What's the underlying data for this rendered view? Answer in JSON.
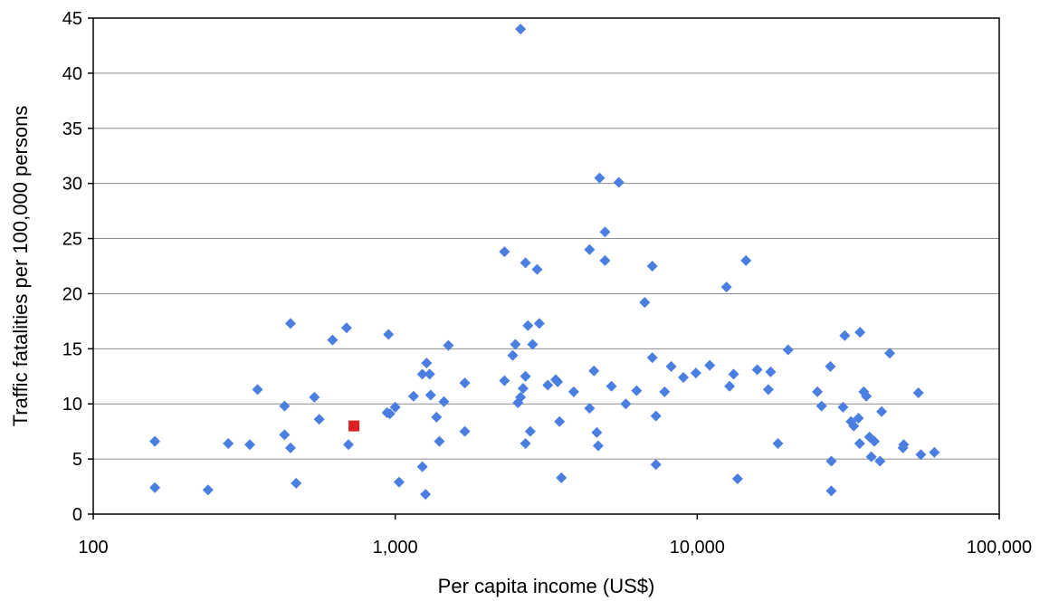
{
  "chart_data": {
    "type": "scatter",
    "xlabel": "Per capita income (US$)",
    "ylabel": "Traffic fatalities per 100,000 persons",
    "x_scale": "log",
    "xlim": [
      100,
      100000
    ],
    "ylim": [
      0,
      45
    ],
    "x_ticks": [
      {
        "value": 100,
        "label": "100"
      },
      {
        "value": 1000,
        "label": "1,000"
      },
      {
        "value": 10000,
        "label": "10,000"
      },
      {
        "value": 100000,
        "label": "100,000"
      }
    ],
    "y_ticks": [
      {
        "value": 0,
        "label": "0"
      },
      {
        "value": 5,
        "label": "5"
      },
      {
        "value": 10,
        "label": "10"
      },
      {
        "value": 15,
        "label": "15"
      },
      {
        "value": 20,
        "label": "20"
      },
      {
        "value": 25,
        "label": "25"
      },
      {
        "value": 30,
        "label": "30"
      },
      {
        "value": 35,
        "label": "35"
      },
      {
        "value": 40,
        "label": "40"
      },
      {
        "value": 45,
        "label": "45"
      }
    ],
    "grid": "horizontal",
    "legend": "none",
    "series": [
      {
        "marker": "diamond",
        "color": "#4a7ee0",
        "points": [
          [
            160,
            6.6
          ],
          [
            160,
            2.4
          ],
          [
            240,
            2.2
          ],
          [
            280,
            6.4
          ],
          [
            330,
            6.3
          ],
          [
            350,
            11.3
          ],
          [
            430,
            9.8
          ],
          [
            430,
            7.2
          ],
          [
            450,
            17.3
          ],
          [
            450,
            6.0
          ],
          [
            470,
            2.8
          ],
          [
            540,
            10.6
          ],
          [
            560,
            8.6
          ],
          [
            620,
            15.8
          ],
          [
            690,
            16.9
          ],
          [
            700,
            6.3
          ],
          [
            940,
            9.2
          ],
          [
            950,
            16.3
          ],
          [
            960,
            9.1
          ],
          [
            1000,
            9.7
          ],
          [
            1030,
            2.9
          ],
          [
            1150,
            10.7
          ],
          [
            1230,
            12.7
          ],
          [
            1230,
            4.3
          ],
          [
            1260,
            1.8
          ],
          [
            1270,
            13.7
          ],
          [
            1300,
            12.7
          ],
          [
            1310,
            10.8
          ],
          [
            1370,
            8.8
          ],
          [
            1400,
            6.6
          ],
          [
            1450,
            10.2
          ],
          [
            1500,
            15.3
          ],
          [
            1700,
            11.9
          ],
          [
            1700,
            7.5
          ],
          [
            2300,
            23.8
          ],
          [
            2300,
            12.1
          ],
          [
            2450,
            14.4
          ],
          [
            2500,
            15.4
          ],
          [
            2550,
            10.1
          ],
          [
            2600,
            44.0
          ],
          [
            2600,
            10.6
          ],
          [
            2650,
            11.4
          ],
          [
            2700,
            6.4
          ],
          [
            2700,
            12.5
          ],
          [
            2700,
            22.8
          ],
          [
            2750,
            17.1
          ],
          [
            2800,
            7.5
          ],
          [
            2850,
            15.4
          ],
          [
            2950,
            22.2
          ],
          [
            3000,
            17.3
          ],
          [
            3200,
            11.7
          ],
          [
            3400,
            12.2
          ],
          [
            3450,
            12.0
          ],
          [
            3500,
            8.4
          ],
          [
            3550,
            3.3
          ],
          [
            3900,
            11.1
          ],
          [
            4400,
            9.6
          ],
          [
            4400,
            24.0
          ],
          [
            4550,
            13.0
          ],
          [
            4650,
            7.4
          ],
          [
            4700,
            6.2
          ],
          [
            4750,
            30.5
          ],
          [
            4950,
            25.6
          ],
          [
            4950,
            23.0
          ],
          [
            5200,
            11.6
          ],
          [
            5500,
            30.1
          ],
          [
            5800,
            10.0
          ],
          [
            6300,
            11.2
          ],
          [
            6700,
            19.2
          ],
          [
            7100,
            14.2
          ],
          [
            7100,
            22.5
          ],
          [
            7300,
            8.9
          ],
          [
            7300,
            4.5
          ],
          [
            7800,
            11.1
          ],
          [
            8200,
            13.4
          ],
          [
            9000,
            12.4
          ],
          [
            9900,
            12.8
          ],
          [
            11000,
            13.5
          ],
          [
            12500,
            20.6
          ],
          [
            12800,
            11.6
          ],
          [
            13200,
            12.7
          ],
          [
            13600,
            3.2
          ],
          [
            14500,
            23.0
          ],
          [
            15800,
            13.1
          ],
          [
            17200,
            11.3
          ],
          [
            17500,
            12.9
          ],
          [
            18500,
            6.4
          ],
          [
            20000,
            14.9
          ],
          [
            25000,
            11.1
          ],
          [
            25800,
            9.8
          ],
          [
            27600,
            13.4
          ],
          [
            27800,
            4.8
          ],
          [
            27800,
            2.1
          ],
          [
            30400,
            9.7
          ],
          [
            30800,
            16.2
          ],
          [
            32300,
            8.4
          ],
          [
            33000,
            8.0
          ],
          [
            34200,
            8.7
          ],
          [
            34500,
            6.4
          ],
          [
            34600,
            16.5
          ],
          [
            35600,
            11.1
          ],
          [
            36300,
            10.7
          ],
          [
            37200,
            7.0
          ],
          [
            37700,
            5.2
          ],
          [
            38600,
            6.6
          ],
          [
            40300,
            4.8
          ],
          [
            40800,
            9.3
          ],
          [
            43400,
            14.6
          ],
          [
            48000,
            6.0
          ],
          [
            48300,
            6.3
          ],
          [
            54000,
            11.0
          ],
          [
            55000,
            5.4
          ],
          [
            61000,
            5.6
          ]
        ]
      },
      {
        "marker": "square",
        "color": "#e02020",
        "points": [
          [
            730,
            8.0
          ]
        ]
      }
    ]
  }
}
